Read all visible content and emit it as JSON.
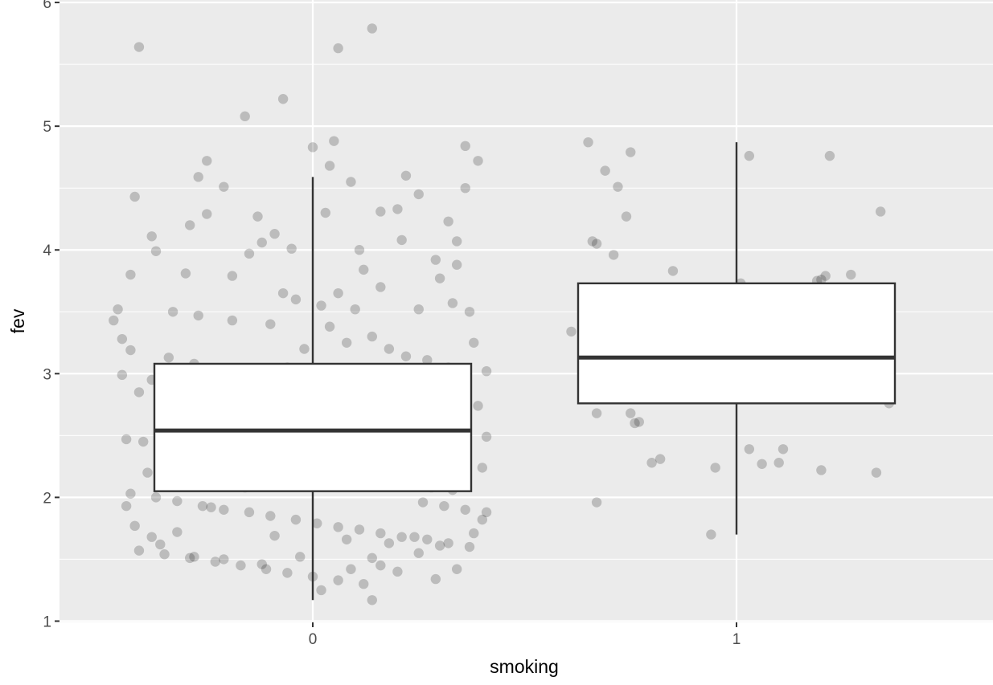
{
  "chart_data": {
    "type": "boxplot",
    "xlabel": "smoking",
    "ylabel": "fev",
    "categories": [
      "0",
      "1"
    ],
    "ylim": [
      0.99,
      6.02
    ],
    "y_ticks": [
      1,
      2,
      3,
      4,
      5,
      6
    ],
    "grid": true,
    "panel_background": "#ebebeb",
    "grid_color": "#ffffff",
    "box_fill": "#ffffff",
    "box_stroke": "#333333",
    "point_color": "#000000",
    "point_alpha": 0.2,
    "boxes": [
      {
        "category": "0",
        "whisker_low": 1.17,
        "q1": 2.05,
        "median": 2.54,
        "q3": 3.08,
        "whisker_high": 4.59
      },
      {
        "category": "1",
        "whisker_low": 1.7,
        "q1": 2.76,
        "median": 3.13,
        "q3": 3.73,
        "whisker_high": 4.87
      }
    ],
    "points": {
      "0_outliers": [
        [
          -0.41,
          5.64
        ],
        [
          0.06,
          5.63
        ],
        [
          0.14,
          5.79
        ],
        [
          -0.07,
          5.22
        ],
        [
          -0.16,
          5.08
        ],
        [
          0.05,
          4.88
        ],
        [
          0.0,
          4.83
        ],
        [
          0.36,
          4.84
        ],
        [
          0.39,
          4.72
        ],
        [
          0.04,
          4.68
        ]
      ],
      "0": [
        [
          -0.42,
          4.43
        ],
        [
          -0.38,
          4.11
        ],
        [
          -0.37,
          3.99
        ],
        [
          -0.29,
          4.2
        ],
        [
          -0.25,
          4.29
        ],
        [
          -0.27,
          4.59
        ],
        [
          -0.25,
          4.72
        ],
        [
          -0.21,
          4.51
        ],
        [
          -0.13,
          4.27
        ],
        [
          -0.09,
          4.13
        ],
        [
          -0.12,
          4.06
        ],
        [
          -0.05,
          4.01
        ],
        [
          -0.15,
          3.97
        ],
        [
          -0.3,
          3.81
        ],
        [
          -0.19,
          3.79
        ],
        [
          -0.43,
          3.8
        ],
        [
          -0.07,
          3.65
        ],
        [
          -0.04,
          3.6
        ],
        [
          0.02,
          3.55
        ],
        [
          -0.46,
          3.52
        ],
        [
          -0.33,
          3.5
        ],
        [
          -0.27,
          3.47
        ],
        [
          -0.19,
          3.43
        ],
        [
          -0.47,
          3.43
        ],
        [
          -0.1,
          3.4
        ],
        [
          -0.45,
          3.28
        ],
        [
          -0.43,
          3.19
        ],
        [
          -0.34,
          3.13
        ],
        [
          -0.28,
          3.08
        ],
        [
          -0.24,
          3.04
        ],
        [
          -0.19,
          3.01
        ],
        [
          -0.45,
          2.99
        ],
        [
          -0.38,
          2.95
        ],
        [
          -0.31,
          2.9
        ],
        [
          -0.27,
          2.85
        ],
        [
          -0.22,
          2.83
        ],
        [
          -0.16,
          2.81
        ],
        [
          -0.12,
          2.78
        ],
        [
          -0.07,
          2.76
        ],
        [
          -0.02,
          2.73
        ],
        [
          0.03,
          2.7
        ],
        [
          0.08,
          2.66
        ],
        [
          0.13,
          2.63
        ],
        [
          0.19,
          2.6
        ],
        [
          0.25,
          2.57
        ],
        [
          0.31,
          2.55
        ],
        [
          0.36,
          2.53
        ],
        [
          0.41,
          2.49
        ],
        [
          -0.44,
          2.47
        ],
        [
          -0.4,
          2.45
        ],
        [
          -0.36,
          2.42
        ],
        [
          -0.3,
          2.39
        ],
        [
          -0.25,
          2.36
        ],
        [
          -0.19,
          2.33
        ],
        [
          -0.14,
          2.3
        ],
        [
          -0.08,
          2.27
        ],
        [
          -0.03,
          2.25
        ],
        [
          0.02,
          2.22
        ],
        [
          0.07,
          2.19
        ],
        [
          0.12,
          2.16
        ],
        [
          0.17,
          2.13
        ],
        [
          0.22,
          2.11
        ],
        [
          0.28,
          2.08
        ],
        [
          0.33,
          2.06
        ],
        [
          -0.43,
          2.03
        ],
        [
          -0.37,
          2.0
        ],
        [
          -0.32,
          1.97
        ],
        [
          -0.26,
          1.93
        ],
        [
          -0.21,
          1.9
        ],
        [
          -0.15,
          1.88
        ],
        [
          -0.1,
          1.85
        ],
        [
          -0.04,
          1.82
        ],
        [
          0.01,
          1.79
        ],
        [
          0.06,
          1.76
        ],
        [
          0.11,
          1.74
        ],
        [
          0.16,
          1.71
        ],
        [
          0.21,
          1.68
        ],
        [
          0.27,
          1.66
        ],
        [
          0.32,
          1.63
        ],
        [
          0.37,
          1.6
        ],
        [
          -0.41,
          1.57
        ],
        [
          -0.35,
          1.54
        ],
        [
          -0.29,
          1.51
        ],
        [
          -0.23,
          1.48
        ],
        [
          -0.17,
          1.45
        ],
        [
          -0.11,
          1.42
        ],
        [
          -0.06,
          1.39
        ],
        [
          0.0,
          1.36
        ],
        [
          0.06,
          1.33
        ],
        [
          0.12,
          1.3
        ],
        [
          -0.32,
          1.72
        ],
        [
          -0.24,
          1.92
        ],
        [
          -0.09,
          1.69
        ],
        [
          0.02,
          1.25
        ],
        [
          0.14,
          1.17
        ],
        [
          0.08,
          1.66
        ],
        [
          0.14,
          1.51
        ],
        [
          0.18,
          1.63
        ],
        [
          0.24,
          1.68
        ],
        [
          0.29,
          1.34
        ],
        [
          0.2,
          4.33
        ],
        [
          0.16,
          4.31
        ],
        [
          0.22,
          4.6
        ],
        [
          0.25,
          4.45
        ],
        [
          0.32,
          4.23
        ],
        [
          0.36,
          4.5
        ],
        [
          0.34,
          4.07
        ],
        [
          0.09,
          4.55
        ],
        [
          0.03,
          4.3
        ],
        [
          0.11,
          4.0
        ],
        [
          0.21,
          4.08
        ],
        [
          0.29,
          3.92
        ],
        [
          0.34,
          3.88
        ],
        [
          0.12,
          3.84
        ],
        [
          0.16,
          3.7
        ],
        [
          0.3,
          3.77
        ],
        [
          0.33,
          3.57
        ],
        [
          0.37,
          3.5
        ],
        [
          0.25,
          3.52
        ],
        [
          0.1,
          3.52
        ],
        [
          0.06,
          3.65
        ],
        [
          0.04,
          3.38
        ],
        [
          0.14,
          3.3
        ],
        [
          0.08,
          3.25
        ],
        [
          0.18,
          3.2
        ],
        [
          0.22,
          3.14
        ],
        [
          0.27,
          3.11
        ],
        [
          0.32,
          3.05
        ],
        [
          0.38,
          3.25
        ],
        [
          0.41,
          3.02
        ],
        [
          -0.02,
          3.2
        ],
        [
          -0.06,
          3.05
        ],
        [
          0.01,
          3.0
        ],
        [
          0.09,
          2.95
        ],
        [
          0.15,
          2.92
        ],
        [
          0.2,
          2.88
        ],
        [
          0.26,
          2.86
        ],
        [
          0.3,
          2.82
        ],
        [
          0.35,
          2.78
        ],
        [
          0.39,
          2.74
        ],
        [
          -0.41,
          2.85
        ],
        [
          -0.35,
          2.7
        ],
        [
          -0.3,
          2.66
        ],
        [
          -0.26,
          2.62
        ],
        [
          -0.18,
          2.58
        ],
        [
          -0.13,
          2.55
        ],
        [
          -0.06,
          2.51
        ],
        [
          0.04,
          2.47
        ],
        [
          0.09,
          2.44
        ],
        [
          0.15,
          2.4
        ],
        [
          0.2,
          2.37
        ],
        [
          0.26,
          2.34
        ],
        [
          0.31,
          2.31
        ],
        [
          0.35,
          2.27
        ],
        [
          0.4,
          2.24
        ],
        [
          -0.39,
          2.2
        ],
        [
          -0.33,
          2.17
        ],
        [
          -0.28,
          2.14
        ],
        [
          -0.22,
          2.11
        ],
        [
          -0.16,
          2.08
        ],
        [
          0.26,
          1.96
        ],
        [
          0.31,
          1.93
        ],
        [
          0.36,
          1.9
        ],
        [
          0.4,
          1.82
        ],
        [
          0.41,
          1.88
        ],
        [
          -0.44,
          1.93
        ],
        [
          -0.42,
          1.77
        ],
        [
          -0.38,
          1.68
        ],
        [
          -0.36,
          1.62
        ],
        [
          -0.28,
          1.52
        ],
        [
          -0.21,
          1.5
        ],
        [
          -0.12,
          1.46
        ],
        [
          -0.03,
          1.52
        ],
        [
          0.09,
          1.42
        ],
        [
          0.16,
          1.45
        ],
        [
          0.2,
          1.4
        ],
        [
          0.25,
          1.55
        ],
        [
          0.3,
          1.61
        ],
        [
          0.34,
          1.42
        ],
        [
          0.38,
          1.71
        ]
      ],
      "1": [
        [
          -0.35,
          4.87
        ],
        [
          -0.25,
          4.79
        ],
        [
          -0.31,
          4.64
        ],
        [
          -0.28,
          4.51
        ],
        [
          -0.26,
          4.27
        ],
        [
          -0.34,
          4.07
        ],
        [
          -0.33,
          4.05
        ],
        [
          -0.29,
          3.96
        ],
        [
          -0.15,
          3.83
        ],
        [
          -0.28,
          3.34
        ],
        [
          -0.29,
          3.3
        ],
        [
          -0.39,
          3.34
        ],
        [
          -0.34,
          3.08
        ],
        [
          -0.34,
          3.01
        ],
        [
          -0.28,
          3.11
        ],
        [
          -0.27,
          3.17
        ],
        [
          -0.21,
          3.11
        ],
        [
          -0.11,
          3.08
        ],
        [
          -0.05,
          3.04
        ],
        [
          -0.06,
          2.91
        ],
        [
          -0.03,
          3.21
        ],
        [
          -0.02,
          3.41
        ],
        [
          -0.01,
          3.09
        ],
        [
          0.01,
          2.96
        ],
        [
          0.02,
          3.42
        ],
        [
          0.01,
          3.73
        ],
        [
          -0.33,
          2.68
        ],
        [
          -0.25,
          2.68
        ],
        [
          -0.24,
          2.6
        ],
        [
          -0.23,
          2.61
        ],
        [
          -0.18,
          2.31
        ],
        [
          -0.2,
          2.28
        ],
        [
          -0.33,
          1.96
        ],
        [
          -0.05,
          2.24
        ],
        [
          -0.06,
          1.7
        ],
        [
          0.03,
          2.39
        ],
        [
          0.06,
          2.27
        ],
        [
          0.1,
          2.28
        ],
        [
          0.11,
          2.39
        ],
        [
          0.2,
          2.22
        ],
        [
          0.18,
          2.97
        ],
        [
          0.2,
          3.08
        ],
        [
          0.21,
          3.3
        ],
        [
          0.24,
          3.34
        ],
        [
          0.21,
          3.69
        ],
        [
          0.19,
          3.43
        ],
        [
          0.19,
          3.75
        ],
        [
          0.21,
          3.79
        ],
        [
          0.27,
          3.8
        ],
        [
          0.28,
          3.16
        ],
        [
          0.29,
          3.13
        ],
        [
          0.34,
          2.8
        ],
        [
          0.36,
          2.76
        ],
        [
          0.33,
          2.2
        ],
        [
          0.36,
          3.51
        ],
        [
          0.34,
          4.31
        ],
        [
          0.22,
          4.76
        ],
        [
          0.03,
          4.76
        ],
        [
          0.17,
          3.19
        ],
        [
          0.2,
          3.76
        ]
      ]
    }
  }
}
